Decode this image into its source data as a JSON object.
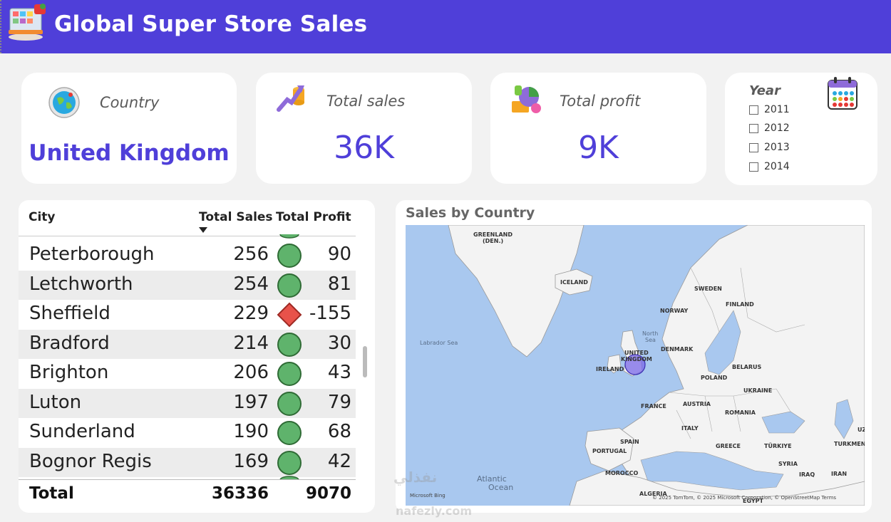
{
  "header": {
    "title": "Global Super Store Sales",
    "logo_icon": "store-logo-icon"
  },
  "kpis": {
    "country": {
      "label": "Country",
      "value": "United Kingdom",
      "icon": "globe-icon"
    },
    "sales": {
      "label": "Total sales",
      "value": "36K",
      "icon": "growth-coins-icon"
    },
    "profit": {
      "label": "Total profit",
      "value": "9K",
      "icon": "profit-chart-icon"
    }
  },
  "year_filter": {
    "label": "Year",
    "icon": "calendar-icon",
    "options": [
      "2011",
      "2012",
      "2013",
      "2014"
    ]
  },
  "table": {
    "headers": {
      "city": "City",
      "sales": "Total Sales",
      "profit": "Total Profit"
    },
    "rows": [
      {
        "city": "Peterborough",
        "sales": "256",
        "profit": "90",
        "indicator": "good"
      },
      {
        "city": "Letchworth",
        "sales": "254",
        "profit": "81",
        "indicator": "good"
      },
      {
        "city": "Sheffield",
        "sales": "229",
        "profit": "-155",
        "indicator": "bad"
      },
      {
        "city": "Bradford",
        "sales": "214",
        "profit": "30",
        "indicator": "good"
      },
      {
        "city": "Brighton",
        "sales": "206",
        "profit": "43",
        "indicator": "good"
      },
      {
        "city": "Luton",
        "sales": "197",
        "profit": "79",
        "indicator": "good"
      },
      {
        "city": "Sunderland",
        "sales": "190",
        "profit": "68",
        "indicator": "good"
      },
      {
        "city": "Bognor Regis",
        "sales": "169",
        "profit": "42",
        "indicator": "good"
      }
    ],
    "total": {
      "label": "Total",
      "sales": "36336",
      "profit": "9070"
    }
  },
  "map": {
    "title": "Sales by Country",
    "labels": {
      "greenland": "GREENLAND",
      "greenland_sub": "(DEN.)",
      "iceland": "ICELAND",
      "sweden": "SWEDEN",
      "norway": "NORWAY",
      "finland": "FINLAND",
      "uk": "UNITED",
      "uk_sub": "KINGDOM",
      "ireland": "IRELAND",
      "denmark": "DENMARK",
      "belarus": "BELARUS",
      "poland": "POLAND",
      "ukraine": "UKRAINE",
      "france": "FRANCE",
      "austria": "AUSTRIA",
      "romania": "ROMANIA",
      "italy": "ITALY",
      "spain": "SPAIN",
      "portugal": "PORTUGAL",
      "greece": "GREECE",
      "turkiye": "TÜRKIYE",
      "turkmen": "TURKMENI",
      "syria": "SYRIA",
      "iraq": "IRAQ",
      "iran": "IRAN",
      "morocco": "MOROCCO",
      "algeria": "ALGERIA",
      "egypt": "EGYPT",
      "uz": "UZ"
    },
    "seas": {
      "labrador": "Labrador Sea",
      "north_sea": "North",
      "north_sea_sub": "Sea",
      "atlantic": "Atlantic",
      "atlantic_sub": "Ocean"
    },
    "attribution": "© 2025 TomTom, © 2025 Microsoft Corporation, © OpenStreetMap  Terms",
    "bing": "Microsoft Bing"
  },
  "watermark": {
    "line1": "نفذلي",
    "line2": "nafezly.com"
  },
  "colors": {
    "accent": "#4f3fd9",
    "good": "#5fb36c",
    "bad": "#e8524a"
  }
}
